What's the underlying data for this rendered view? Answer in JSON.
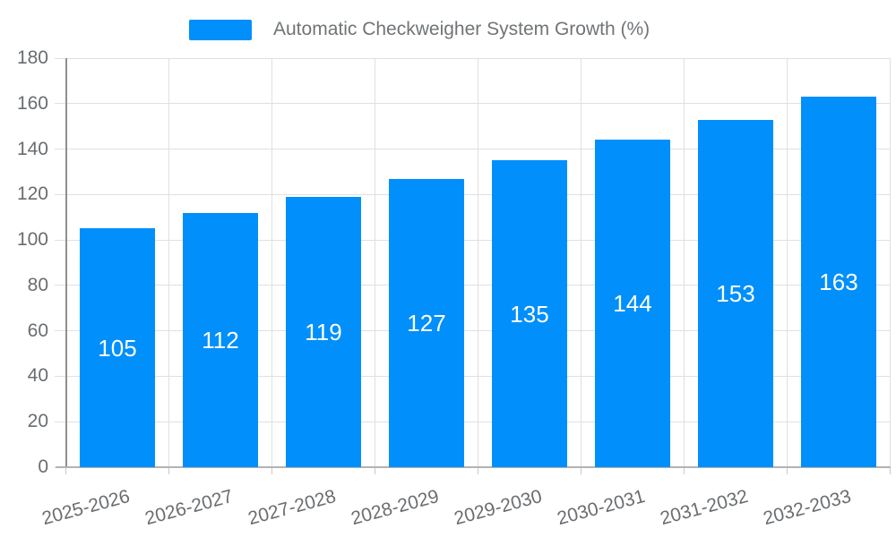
{
  "chart": {
    "legend_label": "Automatic Checkweigher System Growth (%)"
  },
  "chart_data": {
    "type": "bar",
    "title": "Automatic Checkweigher System Growth (%)",
    "categories": [
      "2025-2026",
      "2026-2027",
      "2027-2028",
      "2028-2029",
      "2029-2030",
      "2030-2031",
      "2031-2032",
      "2032-2033"
    ],
    "values": [
      105,
      112,
      119,
      127,
      135,
      144,
      153,
      163
    ],
    "xlabel": "",
    "ylabel": "",
    "ylim": [
      0,
      180
    ],
    "ytick_step": 20,
    "yticks": [
      0,
      20,
      40,
      60,
      80,
      100,
      120,
      140,
      160,
      180
    ],
    "grid": true,
    "legend_position": "top",
    "x_label_rotation_deg": -15,
    "bar_color": "#008FFB",
    "data_label_color": "#FFFFFF",
    "axis_label_color": "#6A6D70",
    "legend_text_color": "#707477",
    "grid_color": "#E0E0E0",
    "y_axis_line_color": "#8F8F8F",
    "x_axis_line_color": "#B3B3B3"
  }
}
